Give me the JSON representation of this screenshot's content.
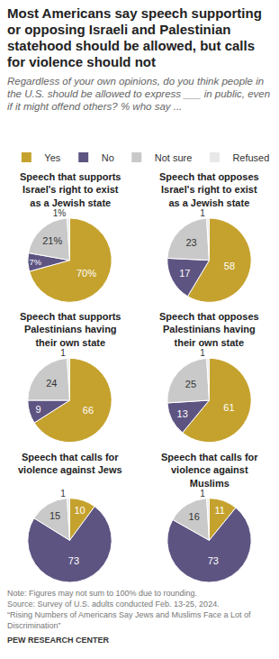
{
  "title": "Most Americans say speech supporting or opposing Israeli and Palestinian statehood should be allowed, but calls for violence should not",
  "subtitle": "Regardless of your own opinions, do you think people in the U.S. should be allowed to express ___ in public, even if it might offend others? % who say ...",
  "legend": "top",
  "note": "Note: Figures may not sum to 100% due to rounding.",
  "source": "Source: Survey of U.S. adults conducted Feb. 13-25, 2024.",
  "report": "“Rising Numbers of Americans Say Jews and Muslims Face a Lot of Discrimination”",
  "credit": "PEW RESEARCH CENTER",
  "chart_data": [
    {
      "type": "pie",
      "title": "Speech that supports Israel's right to exist as a Jewish state",
      "categories": [
        "Yes",
        "No",
        "Not sure",
        "Refused"
      ],
      "values": [
        70,
        7,
        21,
        1
      ],
      "value_labels": [
        "70%",
        "7%",
        "21%",
        "1%"
      ],
      "colors": [
        "#c5a22e",
        "#5e5482",
        "#c9c9c9",
        "#e8e8e8"
      ],
      "data_labels": true
    },
    {
      "type": "pie",
      "title": "Speech that opposes Israel's right to exist as a Jewish state",
      "categories": [
        "Yes",
        "No",
        "Not sure",
        "Refused"
      ],
      "values": [
        58,
        17,
        23,
        1
      ],
      "colors": [
        "#c5a22e",
        "#5e5482",
        "#c9c9c9",
        "#e8e8e8"
      ],
      "data_labels": true
    },
    {
      "type": "pie",
      "title": "Speech that supports Palestinians having their own state",
      "categories": [
        "Yes",
        "No",
        "Not sure",
        "Refused"
      ],
      "values": [
        66,
        9,
        24,
        1
      ],
      "colors": [
        "#c5a22e",
        "#5e5482",
        "#c9c9c9",
        "#e8e8e8"
      ],
      "data_labels": true
    },
    {
      "type": "pie",
      "title": "Speech that opposes Palestinians having their own state",
      "categories": [
        "Yes",
        "No",
        "Not sure",
        "Refused"
      ],
      "values": [
        61,
        13,
        25,
        1
      ],
      "colors": [
        "#c5a22e",
        "#5e5482",
        "#c9c9c9",
        "#e8e8e8"
      ],
      "data_labels": true
    },
    {
      "type": "pie",
      "title": "Speech that calls for violence against Jews",
      "categories": [
        "Yes",
        "No",
        "Not sure",
        "Refused"
      ],
      "values": [
        10,
        73,
        15,
        1
      ],
      "colors": [
        "#c5a22e",
        "#5e5482",
        "#c9c9c9",
        "#e8e8e8"
      ],
      "data_labels": true
    },
    {
      "type": "pie",
      "title": "Speech that calls for violence against Muslims",
      "categories": [
        "Yes",
        "No",
        "Not sure",
        "Refused"
      ],
      "values": [
        11,
        73,
        16,
        1
      ],
      "colors": [
        "#c5a22e",
        "#5e5482",
        "#c9c9c9",
        "#e8e8e8"
      ],
      "data_labels": true
    }
  ]
}
